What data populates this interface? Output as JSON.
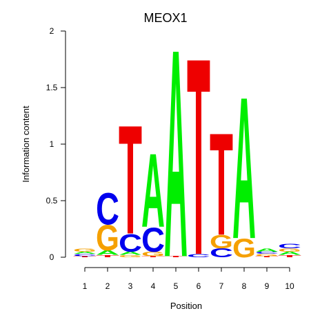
{
  "chart_data": {
    "type": "sequence-logo",
    "title": "MEOX1",
    "xlabel": "Position",
    "ylabel": "Information content",
    "ylim": [
      0,
      2
    ],
    "y_ticks": [
      "0",
      "0.5",
      "1",
      "1.5",
      "2"
    ],
    "x_ticks": [
      "1",
      "2",
      "3",
      "4",
      "5",
      "6",
      "7",
      "8",
      "9",
      "10"
    ],
    "colors": {
      "A": "#00ee00",
      "C": "#0000ee",
      "G": "#f5a000",
      "T": "#ee0000"
    },
    "positions": [
      {
        "position": "1",
        "letters": [
          {
            "base": "T",
            "height": 0.01
          },
          {
            "base": "C",
            "height": 0.02
          },
          {
            "base": "A",
            "height": 0.02
          },
          {
            "base": "G",
            "height": 0.03
          }
        ]
      },
      {
        "position": "2",
        "letters": [
          {
            "base": "T",
            "height": 0.02
          },
          {
            "base": "A",
            "height": 0.04
          },
          {
            "base": "G",
            "height": 0.23
          },
          {
            "base": "C",
            "height": 0.29
          }
        ]
      },
      {
        "position": "3",
        "letters": [
          {
            "base": "G",
            "height": 0.02
          },
          {
            "base": "A",
            "height": 0.03
          },
          {
            "base": "C",
            "height": 0.16
          },
          {
            "base": "T",
            "height": 0.99
          }
        ]
      },
      {
        "position": "4",
        "letters": [
          {
            "base": "T",
            "height": 0.01
          },
          {
            "base": "G",
            "height": 0.04
          },
          {
            "base": "C",
            "height": 0.22
          },
          {
            "base": "A",
            "height": 0.67
          }
        ]
      },
      {
        "position": "5",
        "letters": [
          {
            "base": "T",
            "height": 0.01
          },
          {
            "base": "A",
            "height": 1.89
          }
        ]
      },
      {
        "position": "6",
        "letters": [
          {
            "base": "C",
            "height": 0.03
          },
          {
            "base": "T",
            "height": 1.79
          }
        ]
      },
      {
        "position": "7",
        "letters": [
          {
            "base": "C",
            "height": 0.08
          },
          {
            "base": "G",
            "height": 0.12
          },
          {
            "base": "T",
            "height": 0.93
          }
        ]
      },
      {
        "position": "8",
        "letters": [
          {
            "base": "G",
            "height": 0.17
          },
          {
            "base": "A",
            "height": 1.29
          }
        ]
      },
      {
        "position": "9",
        "letters": [
          {
            "base": "T",
            "height": 0.01
          },
          {
            "base": "G",
            "height": 0.02
          },
          {
            "base": "C",
            "height": 0.02
          },
          {
            "base": "A",
            "height": 0.03
          }
        ]
      },
      {
        "position": "10",
        "letters": [
          {
            "base": "T",
            "height": 0.02
          },
          {
            "base": "A",
            "height": 0.03
          },
          {
            "base": "G",
            "height": 0.03
          },
          {
            "base": "C",
            "height": 0.04
          }
        ]
      }
    ]
  }
}
